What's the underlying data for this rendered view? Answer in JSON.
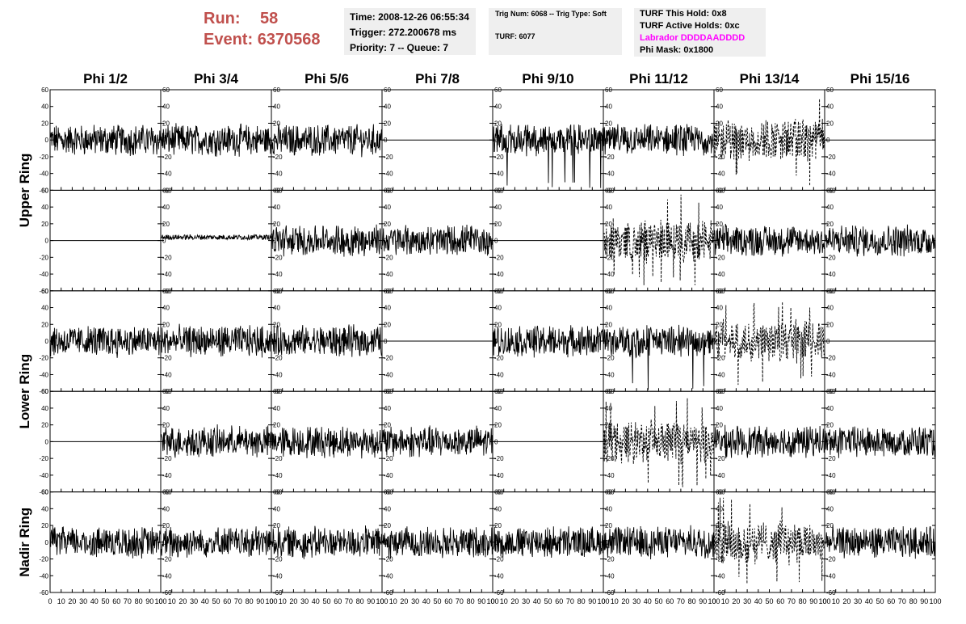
{
  "header": {
    "run_label": "Run:",
    "run_value": "58",
    "event_label": "Event:",
    "event_value": "6370568",
    "time": "Time: 2008-12-26 06:55:34",
    "trigger": "Trigger: 272.200678 ms",
    "priority": "Priority: 7 -- Queue: 7",
    "trig_num": "Trig Num: 6068 -- Trig Type: Soft",
    "turf": "TURF: 6077",
    "turf_hold": "TURF This Hold: 0x8",
    "turf_active": "TURF Active Holds: 0xc",
    "labrador": "Labrador DDDDAADDDD",
    "phi_mask": "Phi Mask: 0x1800"
  },
  "colors": {
    "header_red": "#c0504d",
    "labrador": "#ff00ff",
    "panel_bg": "#efefef"
  },
  "chart_data": {
    "type": "line",
    "columns": [
      "Phi 1/2",
      "Phi 3/4",
      "Phi 5/6",
      "Phi 7/8",
      "Phi 9/10",
      "Phi 11/12",
      "Phi 13/14",
      "Phi 15/16"
    ],
    "row_labels": [
      "Upper Ring",
      "Lower Ring",
      "Nadir Ring"
    ],
    "xlim": [
      0,
      100
    ],
    "ylim": [
      -60,
      60
    ],
    "x_ticks": [
      "0",
      "10",
      "20",
      "30",
      "40",
      "50",
      "60",
      "70",
      "80",
      "90",
      "100"
    ],
    "y_ticks": [
      "60",
      "40",
      "20",
      "0",
      "-20",
      "-40",
      "-60"
    ],
    "panels": [
      [
        "noise",
        "noise",
        "noise",
        "flat",
        "noise-spikes",
        "noise",
        "dashed",
        "flat"
      ],
      [
        "flat",
        "low",
        "noise",
        "noise",
        "flat",
        "dashed",
        "noise",
        "noise"
      ],
      [
        "noise",
        "noise",
        "noise",
        "flat",
        "noise",
        "noise-spikes",
        "dashed",
        "flat"
      ],
      [
        "flat",
        "noise",
        "noise",
        "noise",
        "flat",
        "dashed",
        "noise",
        "noise"
      ],
      [
        "noise",
        "noise",
        "noise",
        "noise",
        "noise",
        "noise",
        "dashed",
        "noise"
      ]
    ],
    "amplitude": {
      "noise": 16,
      "noise-spikes": 16,
      "dashed": 22,
      "low": 3,
      "flat": 0
    }
  }
}
